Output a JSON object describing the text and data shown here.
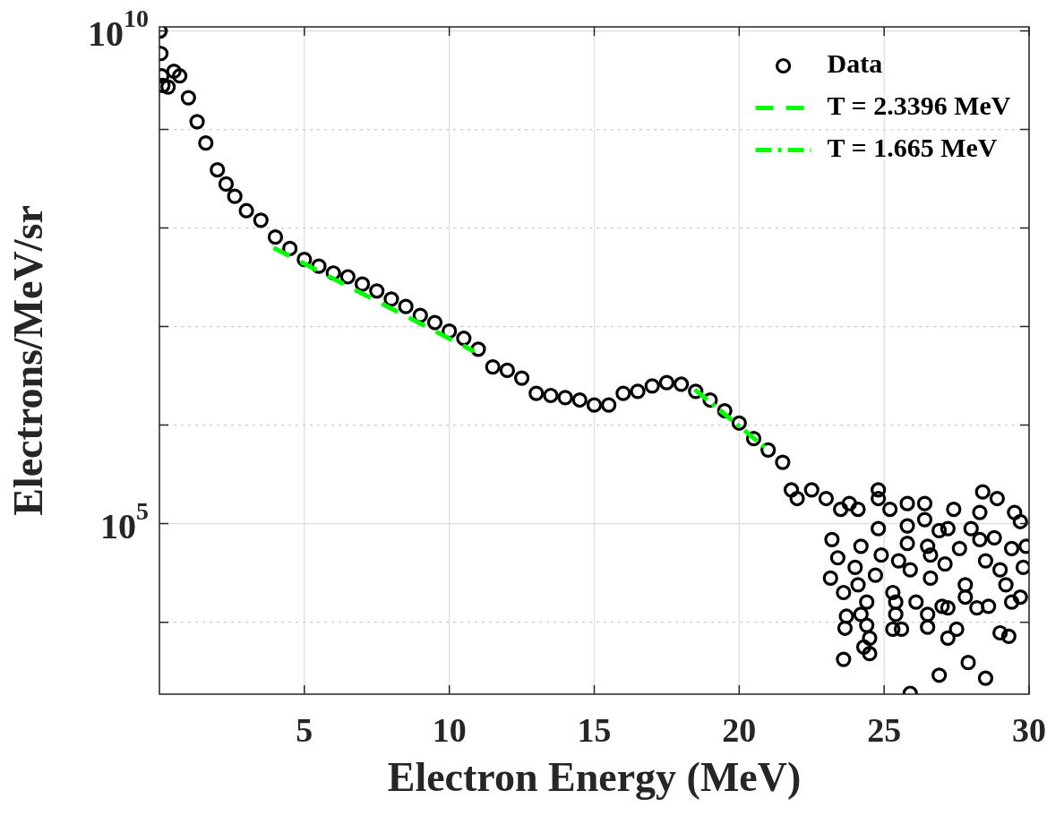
{
  "chart_data": {
    "type": "scatter",
    "xlabel": "Electron Energy (MeV)",
    "ylabel": "Electrons/MeV/sr",
    "log": "y",
    "grid": true,
    "legend": "top right",
    "xlim": [
      0,
      30
    ],
    "xticks": [
      5,
      10,
      15,
      20,
      25,
      30
    ],
    "ylim": [
      1860,
      11000000000
    ],
    "yticks": [
      {
        "value": 10000,
        "label": null
      },
      {
        "value": 100000,
        "label": "10$^{5}$"
      },
      {
        "value": 1000000,
        "label": null
      },
      {
        "value": 10000000,
        "label": null
      },
      {
        "value": 100000000,
        "label": null
      },
      {
        "value": 1000000000,
        "label": null
      },
      {
        "value": 10000000000,
        "label": "10$^{10}$"
      }
    ],
    "series": [
      {
        "name": "Data",
        "type": "scatter",
        "marker": "circle",
        "color": "#000000",
        "x": [
          0.02,
          0.05,
          0.08,
          0.12,
          0.3,
          0.5,
          0.7,
          1.0,
          1.3,
          1.6,
          2.0,
          2.3,
          2.6,
          3.0,
          3.5,
          4.0,
          4.5,
          5.0,
          5.5,
          6.0,
          6.5,
          7.0,
          7.5,
          8.0,
          8.5,
          9.0,
          9.5,
          10.0,
          10.5,
          11.0,
          11.5,
          12.0,
          12.5,
          13.0,
          13.5,
          14.0,
          14.5,
          15.0,
          15.5,
          16.0,
          16.5,
          17.0,
          17.5,
          18.0,
          18.5,
          19.0,
          19.5,
          20.0,
          20.5,
          21.0,
          21.5,
          21.8,
          22.0,
          22.5,
          23.0,
          23.15,
          23.6,
          23.7,
          23.65,
          23.6,
          23.5,
          23.8,
          23.2,
          23.4,
          24.0,
          24.1,
          24.2,
          24.4,
          24.4,
          24.5,
          24.5,
          24.3,
          24.2,
          24.1,
          24.8,
          24.8,
          25.2,
          24.8,
          24.9,
          24.7,
          25.3,
          25.4,
          25.4,
          25.3,
          25.6,
          25.5,
          25.8,
          26.4,
          25.8,
          25.8,
          25.9,
          26.1,
          25.9,
          26.4,
          26.5,
          26.6,
          26.5,
          26.5,
          26.9,
          27.0,
          27.2,
          27.2,
          27.5,
          27.4,
          27.2,
          27.1,
          27.6,
          27.8,
          27.8,
          27.9,
          28.2,
          28.4,
          28.3,
          28.3,
          28.5,
          28.6,
          28.5,
          28.9,
          29.0,
          29.0,
          29.3,
          29.2,
          29.4,
          29.5,
          29.7,
          29.9,
          29.8,
          29.7,
          29.4,
          26.6,
          26.9,
          28.0,
          28.8
        ],
        "values": [
          10000000000,
          5900000000,
          3500000000,
          2800000000,
          2700000000,
          3900000000,
          3500000000,
          2100000000,
          1200000000,
          730000000,
          390000000,
          280000000,
          210000000,
          150000000,
          120000000,
          81000000,
          62000000,
          48000000,
          41000000,
          35000000,
          32000000,
          27000000,
          23000000,
          19000000,
          16000000,
          13000000,
          11000000,
          9000000,
          7600000,
          5900000,
          3900000,
          3600000,
          3000000,
          2100000,
          2000000,
          1900000,
          1800000,
          1600000,
          1600000,
          2100000,
          2200000,
          2500000,
          2700000,
          2600000,
          2200000,
          1800000,
          1400000,
          1050000,
          730000,
          560000,
          420000,
          220000,
          180000,
          220000,
          180000,
          28000,
          20000,
          11500,
          8700,
          4200,
          140000,
          160000,
          69000,
          45000,
          36000,
          24000,
          12000,
          16000,
          9300,
          6900,
          4800,
          5600,
          59000,
          140000,
          220000,
          180000,
          140000,
          89000,
          48000,
          30000,
          20000,
          16000,
          12000,
          8500,
          8500,
          42000,
          160000,
          160000,
          95000,
          63000,
          34000,
          16000,
          1900,
          110000,
          59000,
          28000,
          12000,
          8900,
          2900,
          14500,
          14000,
          6900,
          8500,
          140000,
          89000,
          39000,
          56000,
          24000,
          18000,
          3900,
          14000,
          210000,
          130000,
          69000,
          42000,
          14500,
          2700,
          180000,
          34000,
          7800,
          7200,
          24000,
          16000,
          130000,
          105000,
          59000,
          36000,
          18000,
          56000,
          48000,
          85000,
          89000,
          72000
        ]
      },
      {
        "name": "T = 2.3396 MeV",
        "type": "line",
        "marker": "none",
        "line_style": "dashed",
        "color": "#00ff00",
        "x": [
          3.94,
          10.86
        ],
        "values": [
          63000000,
          5600000
        ]
      },
      {
        "name": "T = 1.665 MeV",
        "type": "line",
        "marker": "none",
        "line_style": "dashdot",
        "color": "#00ff00",
        "x": [
          18.47,
          20.9
        ],
        "values": [
          2300000,
          590000
        ]
      }
    ]
  }
}
